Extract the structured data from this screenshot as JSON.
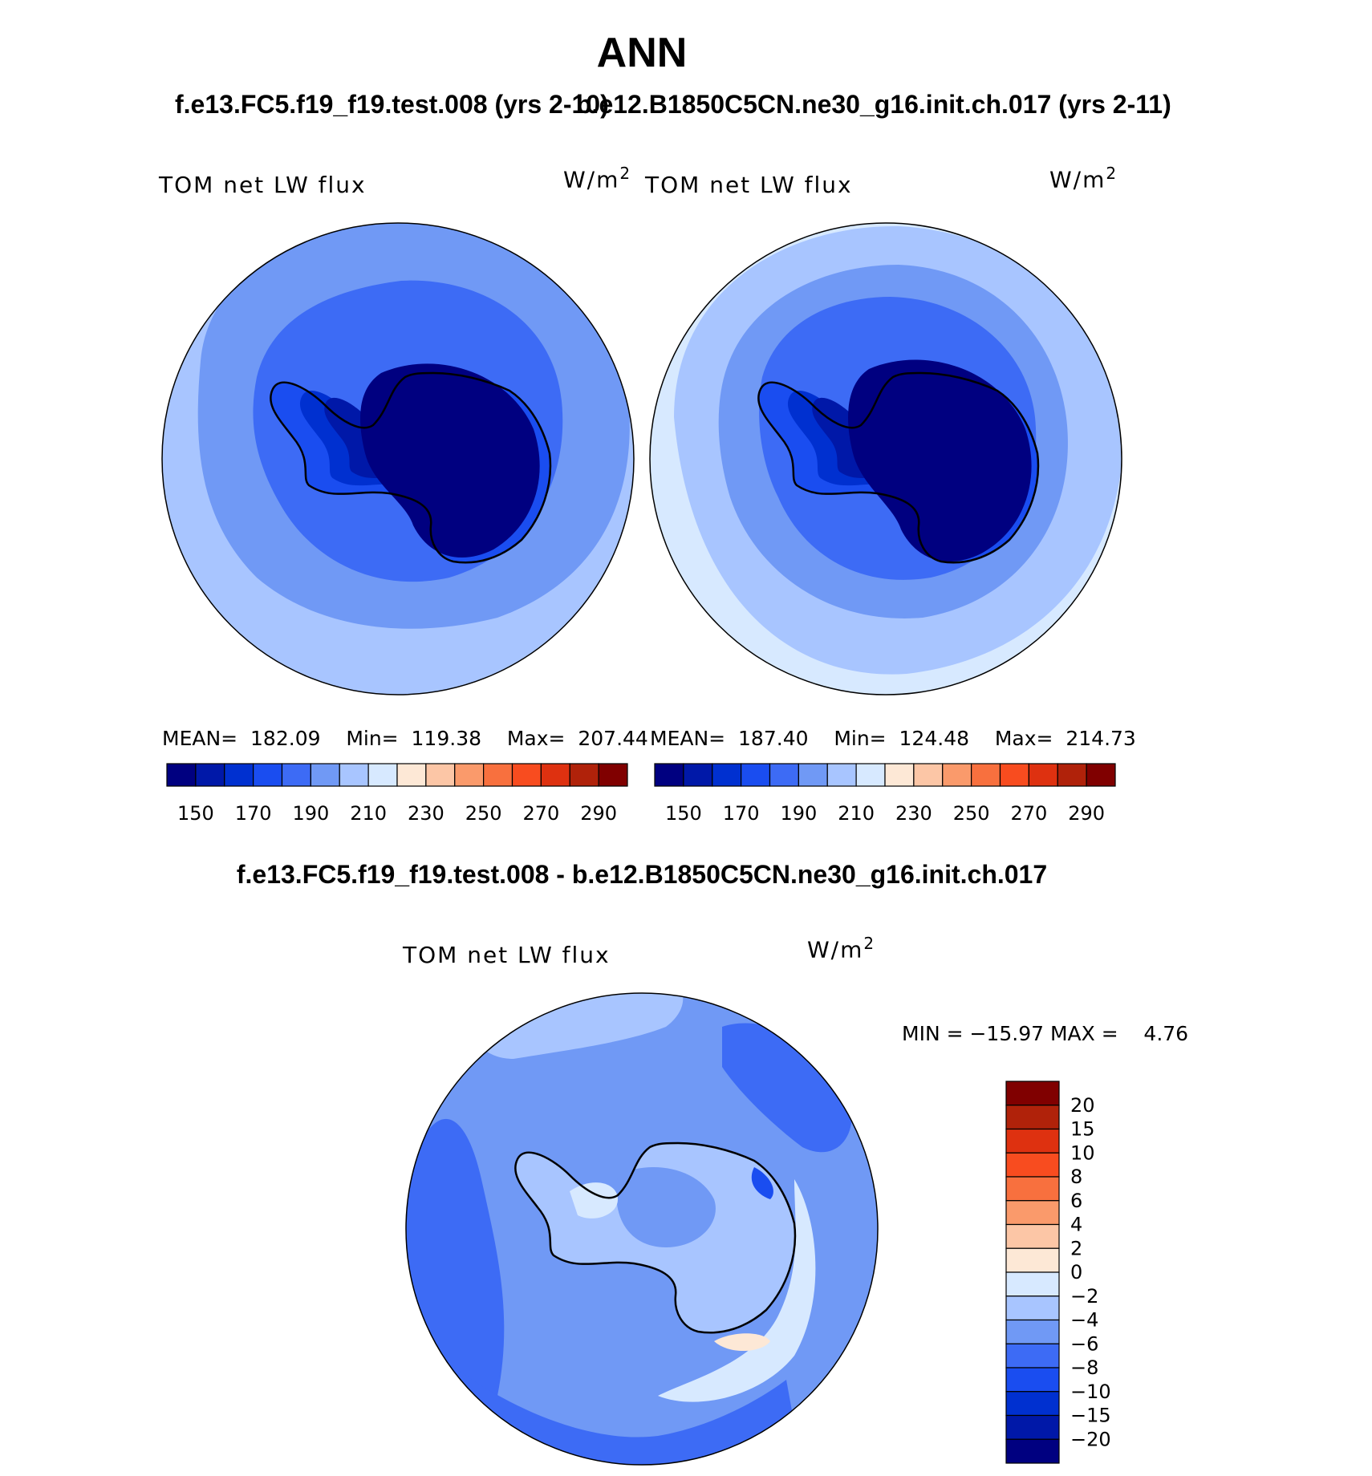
{
  "chart_data": {
    "type": "polar contour map (South Polar Stereographic)",
    "title": "ANN",
    "panels": [
      {
        "id": "test",
        "subtitle": "f.e13.FC5.f19_f19.test.008 (yrs 2-10)",
        "variable": "TOM net LW flux",
        "units": "W/m",
        "units_exp": "2",
        "stats": {
          "mean_label": "MEAN=",
          "mean": "182.09",
          "min_label": "Min=",
          "min": "119.38",
          "max_label": "Max=",
          "max": "207.44"
        },
        "colorbar": {
          "colors": [
            "#000080",
            "#0018a8",
            "#0030d0",
            "#1a4df0",
            "#3d6bf5",
            "#7099f5",
            "#a8c5ff",
            "#d7e9ff",
            "#fde8d6",
            "#fcc6a6",
            "#fa9a6b",
            "#f8703e",
            "#f84c1f",
            "#de3110",
            "#b0220a",
            "#800000"
          ],
          "tick_labels": [
            "150",
            "170",
            "190",
            "210",
            "230",
            "250",
            "270",
            "290"
          ]
        }
      },
      {
        "id": "control",
        "subtitle": "b.e12.B1850C5CN.ne30_g16.init.ch.017 (yrs 2-11)",
        "variable": "TOM net LW flux",
        "units": "W/m",
        "units_exp": "2",
        "stats": {
          "mean_label": "MEAN=",
          "mean": "187.40",
          "min_label": "Min=",
          "min": "124.48",
          "max_label": "Max=",
          "max": "214.73"
        },
        "colorbar": {
          "colors": [
            "#000080",
            "#0018a8",
            "#0030d0",
            "#1a4df0",
            "#3d6bf5",
            "#7099f5",
            "#a8c5ff",
            "#d7e9ff",
            "#fde8d6",
            "#fcc6a6",
            "#fa9a6b",
            "#f8703e",
            "#f84c1f",
            "#de3110",
            "#b0220a",
            "#800000"
          ],
          "tick_labels": [
            "150",
            "170",
            "190",
            "210",
            "230",
            "250",
            "270",
            "290"
          ]
        }
      },
      {
        "id": "difference",
        "subtitle": "f.e13.FC5.f19_f19.test.008 - b.e12.B1850C5CN.ne30_g16.init.ch.017",
        "variable": "TOM net LW flux",
        "units": "W/m",
        "units_exp": "2",
        "stats_text": "MIN = −15.97 MAX =    4.76",
        "colorbar": {
          "colors_top_to_bottom": [
            "#800000",
            "#b0220a",
            "#de3110",
            "#f84c1f",
            "#f8703e",
            "#fa9a6b",
            "#fcc6a6",
            "#fde8d6",
            "#d7e9ff",
            "#a8c5ff",
            "#7099f5",
            "#3d6bf5",
            "#1a4df0",
            "#0030d0",
            "#0018a8",
            "#000080"
          ],
          "tick_labels_top_to_bottom": [
            "20",
            "15",
            "10",
            "8",
            "6",
            "4",
            "2",
            "0",
            "−2",
            "−4",
            "−6",
            "−8",
            "−10",
            "−15",
            "−20"
          ]
        }
      }
    ]
  }
}
